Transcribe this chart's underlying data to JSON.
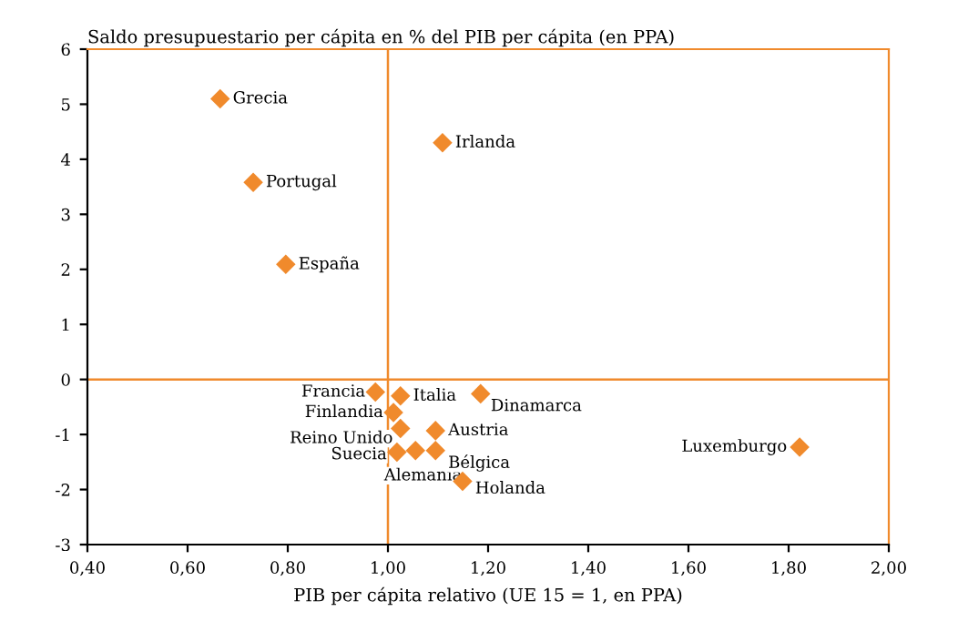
{
  "chart_data": {
    "type": "scatter",
    "ylabel": "Saldo presupuestario per cápita en % del PIB per cápita (en PPA)",
    "xlabel": "PIB per cápita relativo (UE 15 = 1, en PPA)",
    "series": [
      {
        "color": "#f08a2c",
        "x": [
          0.665,
          1.109,
          0.731,
          0.796,
          0.975,
          1.025,
          1.185,
          1.011,
          1.025,
          1.095,
          1.018,
          1.055,
          1.095,
          1.149,
          1.822
        ],
        "values": [
          5.1,
          4.3,
          3.58,
          2.09,
          -0.23,
          -0.3,
          -0.26,
          -0.6,
          -0.89,
          -0.93,
          -1.32,
          -1.29,
          -1.29,
          -1.85,
          -1.23
        ]
      }
    ],
    "marker": "diamond",
    "annotations": [
      {
        "text": "Grecia",
        "x": 0.665,
        "y": 5.1
      },
      {
        "text": "Irlanda",
        "x": 1.109,
        "y": 4.3
      },
      {
        "text": "Portugal",
        "x": 0.731,
        "y": 3.58
      },
      {
        "text": "España",
        "x": 0.796,
        "y": 2.09
      },
      {
        "text": "Francia",
        "x": 0.975,
        "y": -0.23
      },
      {
        "text": "Italia",
        "x": 1.025,
        "y": -0.3
      },
      {
        "text": "Dinamarca",
        "x": 1.185,
        "y": -0.26
      },
      {
        "text": "Finlandia",
        "x": 1.011,
        "y": -0.6
      },
      {
        "text": "Reino Unido",
        "x": 1.025,
        "y": -0.89
      },
      {
        "text": "Austria",
        "x": 1.095,
        "y": -0.93
      },
      {
        "text": "Suecia",
        "x": 1.018,
        "y": -1.32
      },
      {
        "text": "Alemania",
        "x": 1.055,
        "y": -1.29
      },
      {
        "text": "Bélgica",
        "x": 1.095,
        "y": -1.29
      },
      {
        "text": "Holanda",
        "x": 1.149,
        "y": -1.85
      },
      {
        "text": "Luxemburgo",
        "x": 1.822,
        "y": -1.23
      }
    ],
    "xlim": [
      0.4,
      2.0
    ],
    "ylim": [
      -3,
      6
    ],
    "xticks": [
      {
        "value": 0.4,
        "label": "0,40"
      },
      {
        "value": 0.6,
        "label": "0,60"
      },
      {
        "value": 0.8,
        "label": "0,80"
      },
      {
        "value": 1.0,
        "label": "1,00"
      },
      {
        "value": 1.2,
        "label": "1,20"
      },
      {
        "value": 1.4,
        "label": "1,40"
      },
      {
        "value": 1.6,
        "label": "1,60"
      },
      {
        "value": 1.8,
        "label": "1,80"
      },
      {
        "value": 2.0,
        "label": "2,00"
      }
    ],
    "yticks": [
      -3,
      -2,
      -1,
      0,
      1,
      2,
      3,
      4,
      5,
      6
    ],
    "ref_lines": [
      {
        "axis": "x",
        "value": 1.0,
        "color": "#f08a2c"
      },
      {
        "axis": "y",
        "value": 0,
        "color": "#f08a2c"
      }
    ],
    "grid": false
  }
}
